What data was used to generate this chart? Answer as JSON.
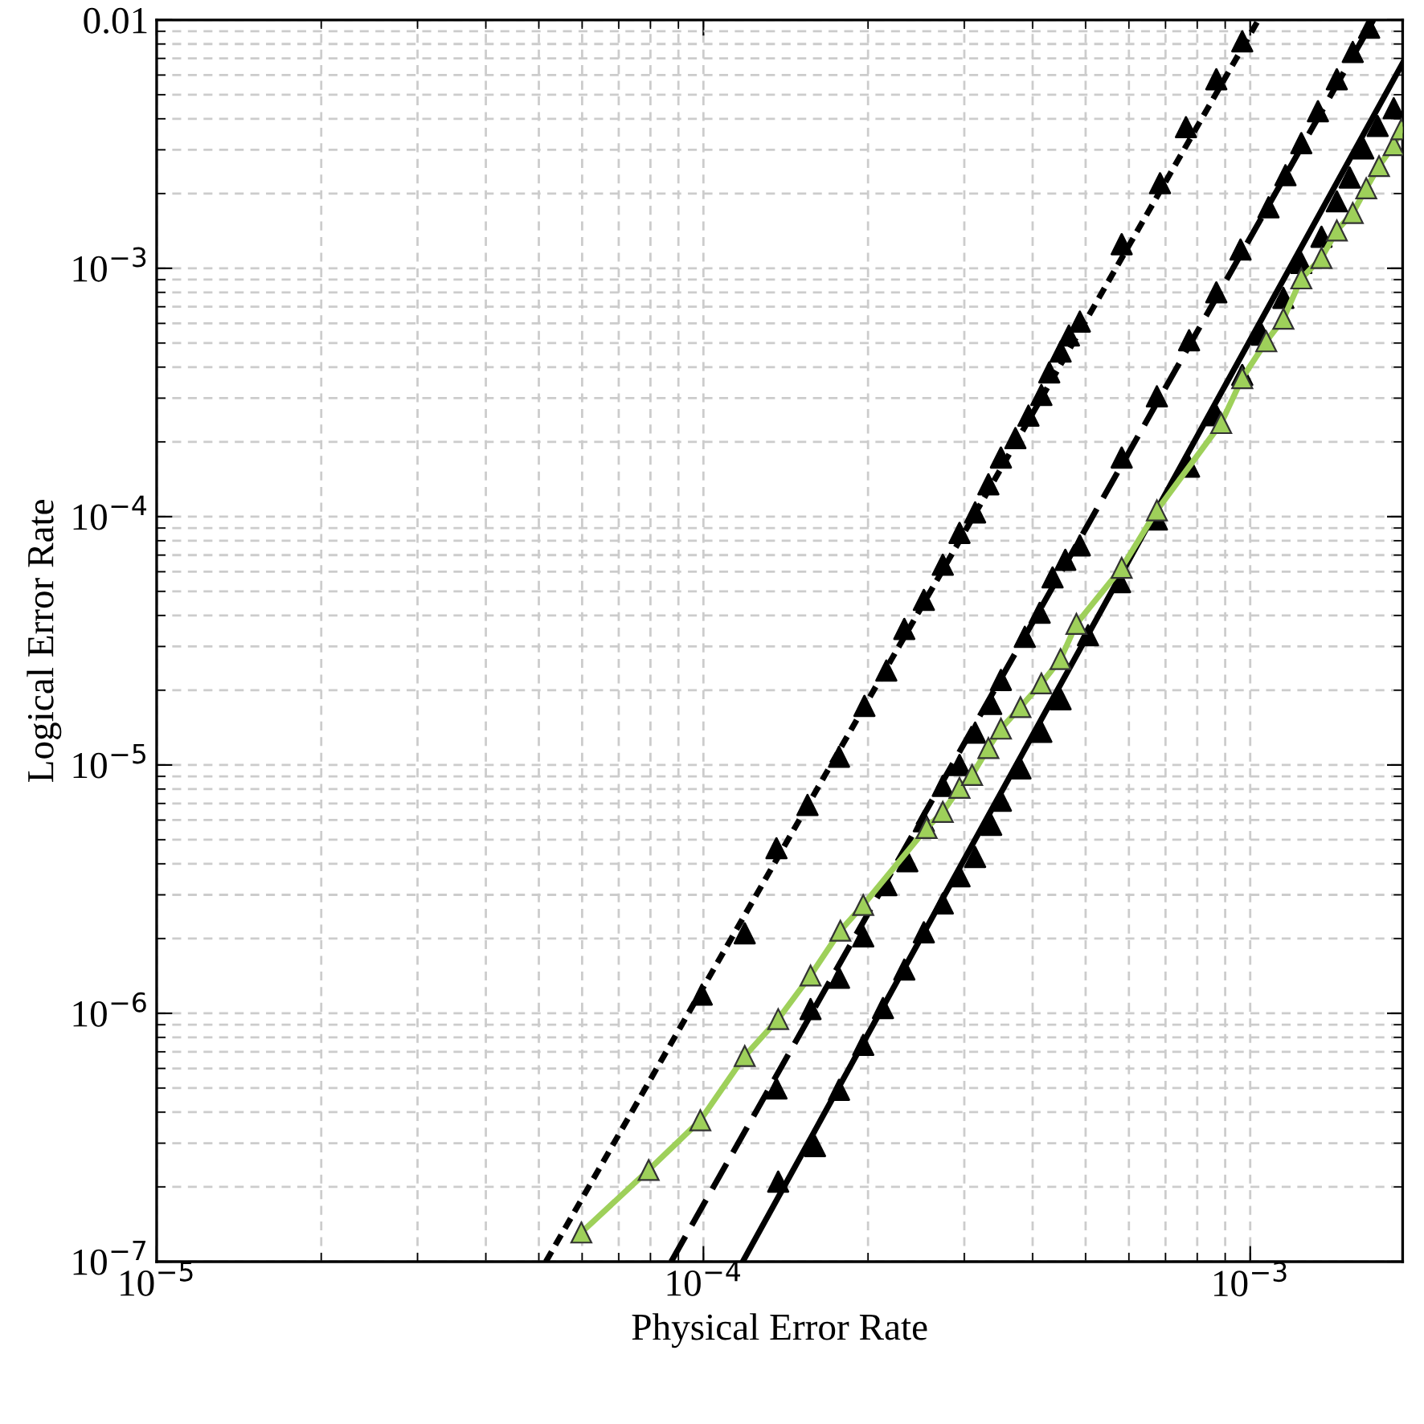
{
  "chart_data": {
    "type": "line",
    "xlabel": "Physical Error Rate",
    "ylabel": "Logical Error Rate",
    "log": "xy",
    "grid": true,
    "xlim": [
      1e-05,
      0.0019
    ],
    "ylim": [
      1e-07,
      0.01
    ],
    "xticks": [
      {
        "value": 1e-05,
        "label": "10$^{−5}$"
      },
      {
        "value": 0.0001,
        "label": "10$^{−4}$"
      },
      {
        "value": 0.001,
        "label": "10$^{−3}$"
      }
    ],
    "yticks": [
      {
        "value": 1e-07,
        "label": "10$^{−7}$"
      },
      {
        "value": 1e-06,
        "label": "10$^{−6}$"
      },
      {
        "value": 1e-05,
        "label": "10$^{−5}$"
      },
      {
        "value": 0.0001,
        "label": "10$^{−4}$"
      },
      {
        "value": 0.001,
        "label": "10$^{−3}$"
      },
      0.01
    ],
    "series": [
      {
        "color": "#000000",
        "line_style": "dotted",
        "x": [
          5.15e-05,
          0.001035
        ],
        "values": [
          1e-07,
          0.01
        ]
      },
      {
        "color": "#000000",
        "line_style": "dashed",
        "x": [
          8.73e-05,
          0.00168
        ],
        "values": [
          1e-07,
          0.01
        ]
      },
      {
        "color": "#000000",
        "line_style": "solid",
        "x": [
          0.000118,
          0.0019
        ],
        "values": [
          1e-07,
          0.0067
        ]
      },
      {
        "color": "#9ed05a",
        "line_style": "solid",
        "marker": "triangle",
        "x": [
          5.98e-05,
          7.94e-05,
          9.87e-05,
          0.000119,
          0.000137,
          0.000157,
          0.000178,
          0.000196,
          0.000256,
          0.000274,
          0.000294,
          0.00031,
          0.000332,
          0.00035,
          0.00038,
          0.000415,
          0.00045,
          0.000481,
          0.000582,
          0.000675,
          0.000885,
          0.000967,
          0.00107,
          0.00115,
          0.00124,
          0.00135,
          0.00144,
          0.00154,
          0.00163,
          0.00172,
          0.00183,
          0.00189
        ],
        "values": [
          1.31e-07,
          2.34e-07,
          3.71e-07,
          6.73e-07,
          9.48e-07,
          1.42e-06,
          2.15e-06,
          2.73e-06,
          5.57e-06,
          6.47e-06,
          8.09e-06,
          9.12e-06,
          1.17e-05,
          1.4e-05,
          1.71e-05,
          2.13e-05,
          2.67e-05,
          3.7e-05,
          6.22e-05,
          0.000106,
          0.000238,
          0.000361,
          0.000508,
          0.000626,
          0.00091,
          0.0011,
          0.00142,
          0.00167,
          0.0021,
          0.00258,
          0.00313,
          0.00363
        ]
      },
      {
        "type": "scatter",
        "color": "#000000",
        "marker": "triangle",
        "x": [
          9.93e-05,
          0.000119,
          0.000136,
          0.000155,
          0.000177,
          0.000197,
          0.000216,
          0.000233,
          0.000253,
          0.000274,
          0.000294,
          0.000314,
          0.000332,
          0.00035,
          0.000372,
          0.000393,
          0.000415,
          0.000429,
          0.00045,
          0.000466,
          0.000488,
          0.000582,
          0.000684,
          0.000763,
          0.000867,
          0.000967
        ],
        "values": [
          1.19e-06,
          2.1e-06,
          4.62e-06,
          6.9e-06,
          1.08e-05,
          1.73e-05,
          2.4e-05,
          3.53e-05,
          4.62e-05,
          6.4e-05,
          8.6e-05,
          0.000104,
          0.000135,
          0.000173,
          0.000207,
          0.000255,
          0.000309,
          0.000381,
          0.000462,
          0.000536,
          0.00061,
          0.00125,
          0.0022,
          0.0037,
          0.00577,
          0.0082
        ]
      },
      {
        "type": "scatter",
        "color": "#000000",
        "marker": "triangle",
        "x": [
          0.000136,
          0.000157,
          0.000177,
          0.000196,
          0.000216,
          0.000236,
          0.000253,
          0.000274,
          0.000294,
          0.000314,
          0.000336,
          0.00035,
          0.000387,
          0.000412,
          0.000435,
          0.000459,
          0.000488,
          0.000582,
          0.000675,
          0.000773,
          0.000867,
          0.00096,
          0.00108,
          0.00116,
          0.00124,
          0.00133,
          0.00144,
          0.00154,
          0.00165
        ],
        "values": [
          4.98e-07,
          1.04e-06,
          1.39e-06,
          2.04e-06,
          3.28e-06,
          4.1e-06,
          5.94e-06,
          8.24e-06,
          1e-05,
          1.35e-05,
          1.76e-05,
          2.2e-05,
          3.28e-05,
          4.1e-05,
          5.69e-05,
          6.7e-05,
          7.66e-05,
          0.000173,
          0.000305,
          0.000513,
          0.0008,
          0.00119,
          0.00176,
          0.00237,
          0.00319,
          0.00429,
          0.00577,
          0.00743,
          0.0093
        ]
      },
      {
        "type": "scatter",
        "color": "#000000",
        "marker": "triangle",
        "x": [
          0.000137,
          0.00016,
          0.000177,
          0.000196,
          0.000213,
          0.000233,
          0.000253,
          0.000274,
          0.000294,
          0.000314,
          0.000336,
          0.00035,
          0.00038,
          0.000415,
          0.00045,
          0.000505,
          0.000578,
          0.000675,
          0.000773,
          0.000867,
          0.000967,
          0.00105,
          0.00115,
          0.00124,
          0.00135,
          0.00144,
          0.00152,
          0.00161,
          0.00171,
          0.00183
        ],
        "values": [
          2.1e-07,
          2.92e-07,
          4.92e-07,
          7.46e-07,
          1.05e-06,
          1.5e-06,
          2.12e-06,
          2.77e-06,
          3.56e-06,
          4.26e-06,
          5.74e-06,
          7.18e-06,
          9.68e-06,
          1.36e-05,
          1.84e-05,
          3.33e-05,
          5.45e-05,
          9.73e-05,
          0.000159,
          0.000256,
          0.000372,
          0.00054,
          0.00076,
          0.00105,
          0.00134,
          0.00186,
          0.00232,
          0.00304,
          0.00374,
          0.00441
        ]
      }
    ]
  }
}
